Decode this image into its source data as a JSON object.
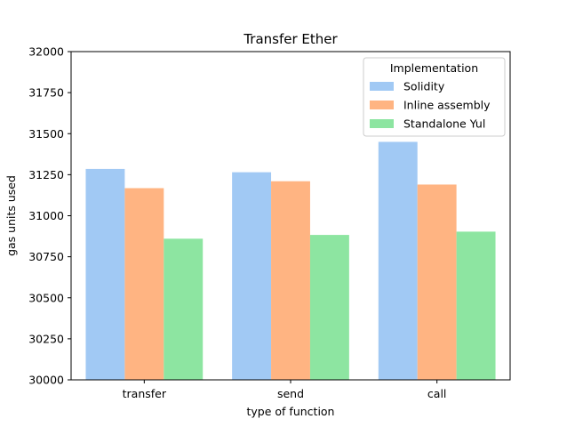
{
  "chart_data": {
    "type": "bar",
    "title": "Transfer Ether",
    "xlabel": "type of function",
    "ylabel": "gas units used",
    "categories": [
      "transfer",
      "send",
      "call"
    ],
    "series": [
      {
        "name": "Solidity",
        "values": [
          31285,
          31265,
          31450
        ],
        "color": "#a1c9f4"
      },
      {
        "name": "Inline assembly",
        "values": [
          31168,
          31210,
          31190
        ],
        "color": "#ffb482"
      },
      {
        "name": "Standalone Yul",
        "values": [
          30860,
          30883,
          30903
        ],
        "color": "#8de5a1"
      }
    ],
    "ylim": [
      30000,
      32000
    ],
    "yticks": [
      30000,
      30250,
      30500,
      30750,
      31000,
      31250,
      31500,
      31750,
      32000
    ],
    "legend": {
      "title": "Implementation",
      "position": "top-right"
    },
    "grid": false
  }
}
